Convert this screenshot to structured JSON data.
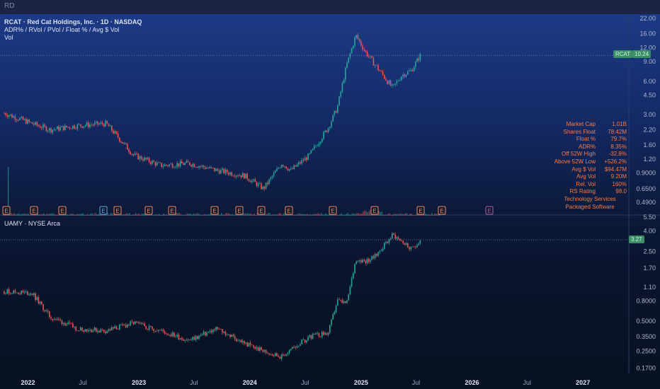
{
  "topbar": {
    "title": "RD"
  },
  "panels": [
    {
      "title_line1": "RCAT · Red Cat Holdings, Inc. · 1D · NASDAQ",
      "title_line2": "ADR% / RVol / PVol / Float % / Avg $ Vol",
      "title_line3": "Vol",
      "symbol_tag": "RCAT",
      "price_tag": "10.24"
    },
    {
      "title_line1": "UAMY · NYSE Arca",
      "price_tag": "3.27"
    }
  ],
  "stats": {
    "rows": [
      {
        "key": "Market Cap",
        "value": "1.01B"
      },
      {
        "key": "Shares Float",
        "value": "78.42M"
      },
      {
        "key": "Float %",
        "value": "79.7%"
      },
      {
        "key": "ADR%",
        "value": "8.35%"
      },
      {
        "key": "Off 52W High",
        "value": "-32.8%"
      },
      {
        "key": "Above 52W Low",
        "value": "+526.2%"
      },
      {
        "key": "Avg $ Vol",
        "value": "$94.47M"
      },
      {
        "key": "Avg Vol",
        "value": "9.20M"
      },
      {
        "key": "Rel. Vol",
        "value": "160%"
      },
      {
        "key": "RS Rating",
        "value": "98.0"
      }
    ],
    "sector": "Technology Services",
    "industry": "Packaged Software"
  },
  "colors": {
    "up": "#26a69a",
    "down": "#ef5350",
    "earnings_border": "#f08a5d",
    "earnings_alt": "#5fa7e0",
    "price_tag": "#3b8f66",
    "stats_text": "#ff7a3c"
  },
  "chart_data": [
    {
      "type": "line",
      "style": "candlestick",
      "symbol": "RCAT",
      "title": "RCAT · Red Cat Holdings, Inc. · 1D · NASDAQ",
      "scale": "log",
      "ylim": [
        0.4,
        24
      ],
      "y_ticks": [
        "22.00",
        "16.00",
        "12.00",
        "9.00",
        "6.00",
        "4.50",
        "3.00",
        "2.20",
        "1.60",
        "1.20",
        "0.9000",
        "0.6500",
        "0.4900"
      ],
      "x": [
        "2021-10",
        "2022-01",
        "2022-03",
        "2022-06",
        "2022-09",
        "2022-12",
        "2023-03",
        "2023-06",
        "2023-09",
        "2023-12",
        "2024-02",
        "2024-04",
        "2024-05",
        "2024-07",
        "2024-09",
        "2024-10",
        "2024-11",
        "2024-12",
        "2025-01",
        "2025-02",
        "2025-04",
        "2025-05",
        "2025-06",
        "2025-07"
      ],
      "values": [
        3.1,
        2.5,
        2.2,
        2.4,
        2.5,
        1.3,
        1.05,
        1.1,
        0.95,
        0.85,
        0.65,
        1.1,
        0.95,
        1.3,
        2.3,
        3.5,
        8.5,
        15.5,
        11.0,
        8.5,
        5.2,
        6.8,
        7.5,
        10.24
      ],
      "last_price": 10.24,
      "earnings_markers": 16
    },
    {
      "type": "line",
      "style": "candlestick",
      "symbol": "UAMY",
      "title": "UAMY · NYSE Arca",
      "scale": "log",
      "ylim": [
        0.15,
        5.6
      ],
      "y_ticks": [
        "5.50",
        "4.00",
        "2.50",
        "1.70",
        "1.10",
        "0.8000",
        "0.5000",
        "0.3500",
        "0.2500",
        "0.1700"
      ],
      "x": [
        "2021-10",
        "2022-01",
        "2022-03",
        "2022-06",
        "2022-09",
        "2022-12",
        "2023-03",
        "2023-06",
        "2023-09",
        "2023-12",
        "2024-02",
        "2024-04",
        "2024-05",
        "2024-07",
        "2024-09",
        "2024-10",
        "2024-11",
        "2024-12",
        "2025-01",
        "2025-02",
        "2025-04",
        "2025-05",
        "2025-06",
        "2025-07"
      ],
      "values": [
        1.0,
        0.95,
        0.55,
        0.42,
        0.4,
        0.48,
        0.4,
        0.32,
        0.42,
        0.3,
        0.25,
        0.22,
        0.26,
        0.35,
        0.38,
        0.8,
        0.75,
        2.1,
        2.0,
        2.2,
        3.7,
        3.2,
        2.6,
        3.27
      ],
      "last_price": 3.27
    }
  ],
  "x_axis": {
    "labels": [
      "2022",
      "Jul",
      "2023",
      "Jul",
      "2024",
      "Jul",
      "2025",
      "Jul",
      "2026",
      "Jul",
      "2027"
    ],
    "bold": [
      true,
      false,
      true,
      false,
      true,
      false,
      true,
      false,
      true,
      false,
      true
    ]
  }
}
